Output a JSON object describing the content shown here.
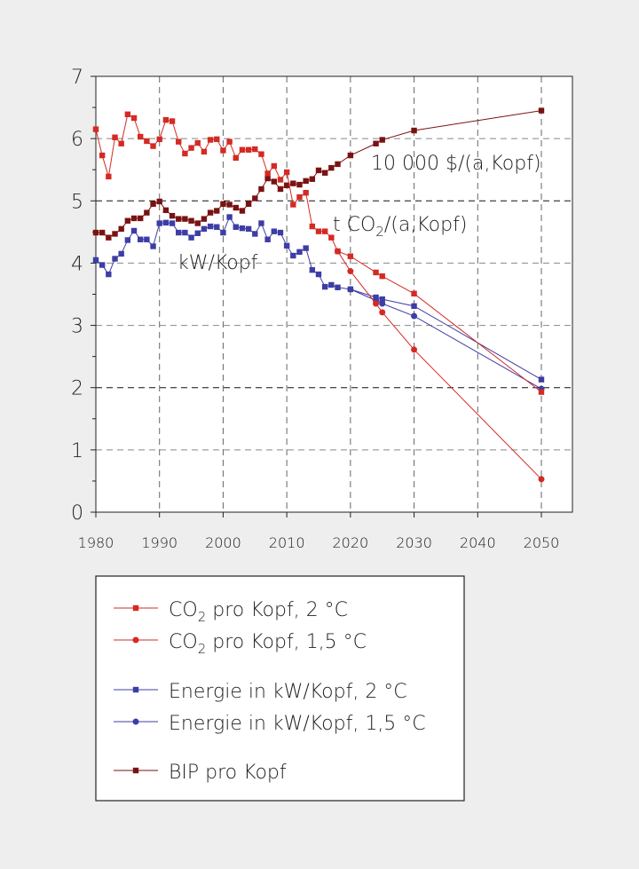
{
  "chart_data": {
    "type": "line",
    "xlim": [
      1980,
      2055
    ],
    "ylim": [
      0,
      7
    ],
    "x_ticks": [
      1980,
      1990,
      2000,
      2010,
      2020,
      2030,
      2040,
      2050
    ],
    "y_ticks": [
      0,
      1,
      2,
      3,
      4,
      5,
      6,
      7
    ],
    "grid": true,
    "legend_placement": "below",
    "annotations": [
      {
        "text": "10 000 $/(a,Kopf)",
        "series": "BIP pro Kopf"
      },
      {
        "text": "t CO",
        "sub": "2",
        "rest": "/(a,Kopf)",
        "series": "CO2"
      },
      {
        "text": "kW/Kopf",
        "series": "Energie"
      }
    ],
    "series": [
      {
        "name": "CO₂ pro Kopf, 2 °C",
        "label_main": "CO",
        "label_sub": "2",
        "label_rest": " pro Kopf, 2 °C",
        "color": "#d42a24",
        "marker": "square",
        "x": [
          1980,
          1981,
          1982,
          1983,
          1984,
          1985,
          1986,
          1987,
          1988,
          1989,
          1990,
          1991,
          1992,
          1993,
          1994,
          1995,
          1996,
          1997,
          1998,
          1999,
          2000,
          2001,
          2002,
          2003,
          2004,
          2005,
          2006,
          2007,
          2008,
          2009,
          2010,
          2011,
          2012,
          2013,
          2014,
          2015,
          2016,
          2017,
          2018,
          2020,
          2024,
          2025,
          2030,
          2050
        ],
        "y": [
          6.15,
          5.73,
          5.39,
          6.02,
          5.92,
          6.39,
          6.33,
          6.03,
          5.96,
          5.88,
          5.99,
          6.3,
          6.28,
          5.95,
          5.76,
          5.85,
          5.93,
          5.79,
          5.98,
          5.99,
          5.81,
          5.95,
          5.69,
          5.82,
          5.82,
          5.83,
          5.75,
          5.44,
          5.56,
          5.34,
          5.46,
          4.94,
          5.06,
          5.13,
          4.59,
          4.51,
          4.51,
          4.41,
          4.19,
          4.11,
          3.85,
          3.79,
          3.51,
          1.93
        ]
      },
      {
        "name": "CO₂ pro Kopf, 1,5 °C",
        "label_main": "CO",
        "label_sub": "2",
        "label_rest": " pro Kopf, 1,5 °C",
        "color": "#d42a24",
        "marker": "circle",
        "x": [
          2018,
          2020,
          2024,
          2025,
          2030,
          2050
        ],
        "y": [
          4.19,
          3.87,
          3.35,
          3.21,
          2.61,
          0.53
        ]
      },
      {
        "name": "Energie in kW/Kopf, 2 °C",
        "label_main": "Energie in kW/Kopf, 2 °C",
        "color": "#3d3da6",
        "marker": "square",
        "x": [
          1980,
          1981,
          1982,
          1983,
          1984,
          1985,
          1986,
          1987,
          1988,
          1989,
          1990,
          1991,
          1992,
          1993,
          1994,
          1995,
          1996,
          1997,
          1998,
          1999,
          2000,
          2001,
          2002,
          2003,
          2004,
          2005,
          2006,
          2007,
          2008,
          2009,
          2010,
          2011,
          2012,
          2013,
          2014,
          2015,
          2016,
          2017,
          2018,
          2020,
          2024,
          2025,
          2030,
          2050
        ],
        "y": [
          4.05,
          3.97,
          3.82,
          4.07,
          4.15,
          4.37,
          4.52,
          4.38,
          4.38,
          4.27,
          4.64,
          4.65,
          4.64,
          4.49,
          4.49,
          4.41,
          4.48,
          4.55,
          4.59,
          4.58,
          4.49,
          4.74,
          4.58,
          4.56,
          4.55,
          4.47,
          4.64,
          4.38,
          4.51,
          4.49,
          4.28,
          4.12,
          4.18,
          4.24,
          3.89,
          3.82,
          3.62,
          3.65,
          3.61,
          3.58,
          3.45,
          3.42,
          3.31,
          2.13
        ]
      },
      {
        "name": "Energie in kW/Kopf, 1,5 °C",
        "label_main": "Energie in kW/Kopf, 1,5 °C",
        "color": "#3d3da6",
        "marker": "circle",
        "x": [
          2020,
          2024,
          2025,
          2030,
          2050
        ],
        "y": [
          3.58,
          3.4,
          3.35,
          3.15,
          1.98
        ]
      },
      {
        "name": "BIP pro Kopf",
        "label_main": "BIP pro Kopf",
        "color": "#7a1212",
        "marker": "square",
        "x": [
          1980,
          1981,
          1982,
          1983,
          1984,
          1985,
          1986,
          1987,
          1988,
          1989,
          1990,
          1991,
          1992,
          1993,
          1994,
          1995,
          1996,
          1997,
          1998,
          1999,
          2000,
          2001,
          2002,
          2003,
          2004,
          2005,
          2006,
          2007,
          2008,
          2009,
          2010,
          2011,
          2012,
          2013,
          2014,
          2015,
          2016,
          2017,
          2018,
          2020,
          2024,
          2025,
          2030,
          2050
        ],
        "y": [
          4.49,
          4.49,
          4.41,
          4.47,
          4.55,
          4.68,
          4.72,
          4.72,
          4.81,
          4.95,
          4.99,
          4.85,
          4.76,
          4.71,
          4.71,
          4.68,
          4.64,
          4.71,
          4.81,
          4.84,
          4.95,
          4.94,
          4.89,
          4.84,
          4.95,
          5.04,
          5.19,
          5.36,
          5.31,
          5.19,
          5.25,
          5.28,
          5.26,
          5.32,
          5.35,
          5.49,
          5.45,
          5.53,
          5.59,
          5.73,
          5.92,
          5.98,
          6.13,
          6.45
        ]
      }
    ]
  }
}
